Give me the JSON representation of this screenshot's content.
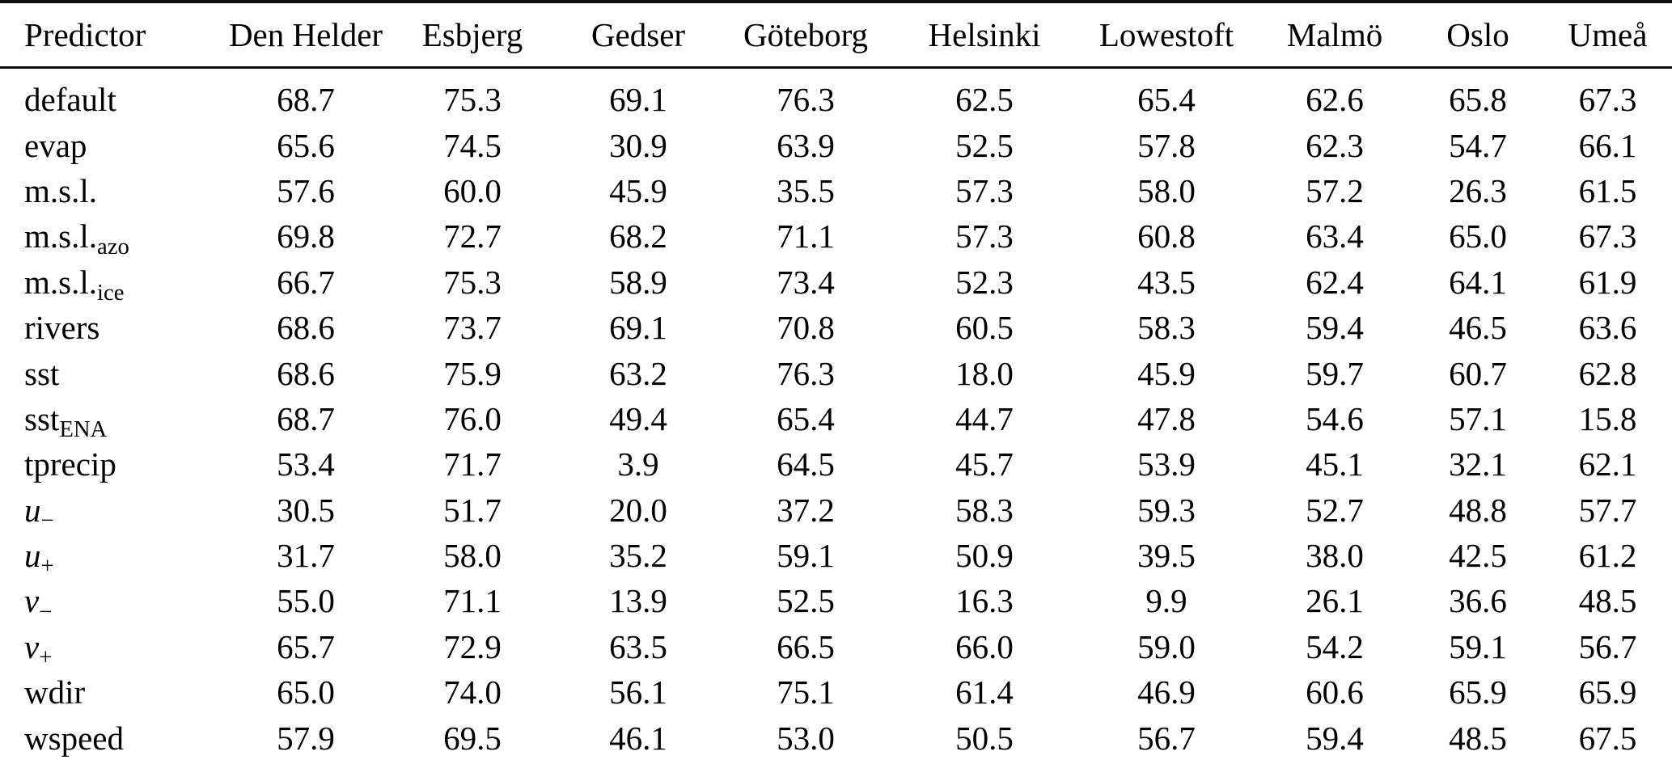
{
  "table": {
    "name": "predictor-skill-by-station",
    "columns": [
      "Predictor",
      "Den Helder",
      "Esbjerg",
      "Gedser",
      "Göteborg",
      "Helsinki",
      "Lowestoft",
      "Malmö",
      "Oslo",
      "Umeå"
    ],
    "rows": [
      {
        "label": {
          "base": "default",
          "sub": "",
          "italic": false
        },
        "values": [
          "68.7",
          "75.3",
          "69.1",
          "76.3",
          "62.5",
          "65.4",
          "62.6",
          "65.8",
          "67.3"
        ]
      },
      {
        "label": {
          "base": "evap",
          "sub": "",
          "italic": false
        },
        "values": [
          "65.6",
          "74.5",
          "30.9",
          "63.9",
          "52.5",
          "57.8",
          "62.3",
          "54.7",
          "66.1"
        ]
      },
      {
        "label": {
          "base": "m.s.l.",
          "sub": "",
          "italic": false
        },
        "values": [
          "57.6",
          "60.0",
          "45.9",
          "35.5",
          "57.3",
          "58.0",
          "57.2",
          "26.3",
          "61.5"
        ]
      },
      {
        "label": {
          "base": "m.s.l.",
          "sub": "azo",
          "italic": false
        },
        "values": [
          "69.8",
          "72.7",
          "68.2",
          "71.1",
          "57.3",
          "60.8",
          "63.4",
          "65.0",
          "67.3"
        ]
      },
      {
        "label": {
          "base": "m.s.l.",
          "sub": "ice",
          "italic": false
        },
        "values": [
          "66.7",
          "75.3",
          "58.9",
          "73.4",
          "52.3",
          "43.5",
          "62.4",
          "64.1",
          "61.9"
        ]
      },
      {
        "label": {
          "base": "rivers",
          "sub": "",
          "italic": false
        },
        "values": [
          "68.6",
          "73.7",
          "69.1",
          "70.8",
          "60.5",
          "58.3",
          "59.4",
          "46.5",
          "63.6"
        ]
      },
      {
        "label": {
          "base": "sst",
          "sub": "",
          "italic": false
        },
        "values": [
          "68.6",
          "75.9",
          "63.2",
          "76.3",
          "18.0",
          "45.9",
          "59.7",
          "60.7",
          "62.8"
        ]
      },
      {
        "label": {
          "base": "sst",
          "sub": "ENA",
          "italic": false
        },
        "values": [
          "68.7",
          "76.0",
          "49.4",
          "65.4",
          "44.7",
          "47.8",
          "54.6",
          "57.1",
          "15.8"
        ]
      },
      {
        "label": {
          "base": "tprecip",
          "sub": "",
          "italic": false
        },
        "values": [
          "53.4",
          "71.7",
          "3.9",
          "64.5",
          "45.7",
          "53.9",
          "45.1",
          "32.1",
          "62.1"
        ]
      },
      {
        "label": {
          "base": "u",
          "sub": "−",
          "italic": true
        },
        "values": [
          "30.5",
          "51.7",
          "20.0",
          "37.2",
          "58.3",
          "59.3",
          "52.7",
          "48.8",
          "57.7"
        ]
      },
      {
        "label": {
          "base": "u",
          "sub": "+",
          "italic": true
        },
        "values": [
          "31.7",
          "58.0",
          "35.2",
          "59.1",
          "50.9",
          "39.5",
          "38.0",
          "42.5",
          "61.2"
        ]
      },
      {
        "label": {
          "base": "v",
          "sub": "−",
          "italic": true
        },
        "values": [
          "55.0",
          "71.1",
          "13.9",
          "52.5",
          "16.3",
          "9.9",
          "26.1",
          "36.6",
          "48.5"
        ]
      },
      {
        "label": {
          "base": "v",
          "sub": "+",
          "italic": true
        },
        "values": [
          "65.7",
          "72.9",
          "63.5",
          "66.5",
          "66.0",
          "59.0",
          "54.2",
          "59.1",
          "56.7"
        ]
      },
      {
        "label": {
          "base": "wdir",
          "sub": "",
          "italic": false
        },
        "values": [
          "65.0",
          "74.0",
          "56.1",
          "75.1",
          "61.4",
          "46.9",
          "60.6",
          "65.9",
          "65.9"
        ]
      },
      {
        "label": {
          "base": "wspeed",
          "sub": "",
          "italic": false
        },
        "values": [
          "57.9",
          "69.5",
          "46.1",
          "53.0",
          "50.5",
          "56.7",
          "59.4",
          "48.5",
          "67.5"
        ]
      }
    ]
  },
  "colors": {
    "text": "#000000",
    "rule": "#111111",
    "background": "#ffffff"
  }
}
